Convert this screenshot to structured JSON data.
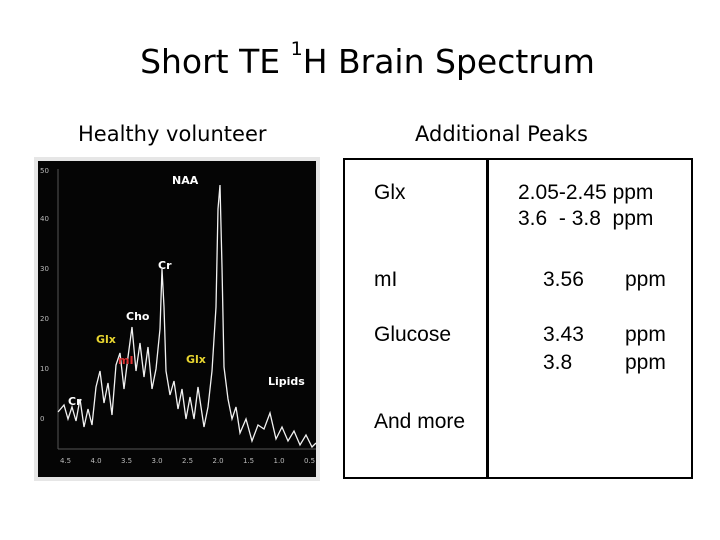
{
  "title": {
    "prefix": "Short TE ",
    "superscript": "1",
    "suffix": "H Brain Spectrum"
  },
  "left_heading": "Healthy volunteer",
  "right_heading": "Additional Peaks",
  "spectrum": {
    "y_ticks": [
      "50",
      "40",
      "30",
      "20",
      "10",
      "0"
    ],
    "x_ticks": [
      "4.5",
      "4.0",
      "3.5",
      "3.0",
      "2.5",
      "2.0",
      "1.5",
      "1.0",
      "0.5"
    ],
    "labels": {
      "naa": "NAA",
      "cr_top": "Cr",
      "cho": "Cho",
      "glx_left": "Glx",
      "ml": "mI",
      "glx_right": "Glx",
      "cr_left": "Cr",
      "lipids": "Lipids"
    },
    "colors": {
      "background": "#050505",
      "trace": "#f2f2f2",
      "label": "#ffffff",
      "glx": "#e8d530",
      "ml": "#e03030"
    }
  },
  "peaks": [
    {
      "name": "Glx",
      "values": [
        "2.05-2.45 ppm",
        "3.6  - 3.8  ppm"
      ]
    },
    {
      "name": "mI",
      "values": [
        "3.56"
      ],
      "units": [
        "ppm"
      ]
    },
    {
      "name": "Glucose",
      "values": [
        "3.43",
        "3.8"
      ],
      "units": [
        "ppm",
        "ppm"
      ]
    }
  ],
  "footer": "And more"
}
